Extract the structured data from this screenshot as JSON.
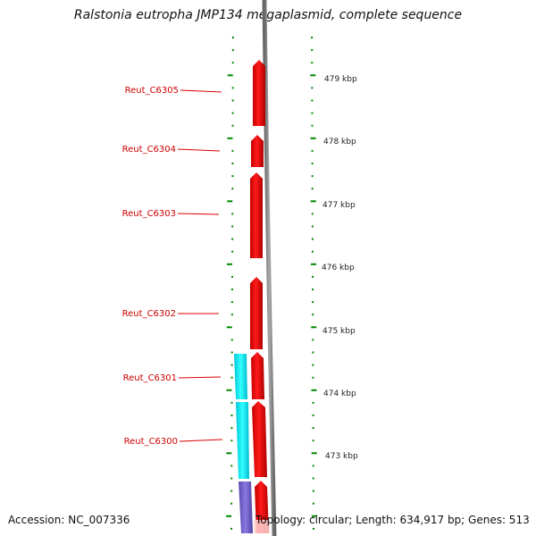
{
  "header": {
    "title": "Ralstonia eutropha JMP134 megaplasmid, complete sequence"
  },
  "footer": {
    "accession": "Accession: NC_007336",
    "topology": "Topology: circular; Length: 634,917 bp; Genes: 513"
  },
  "scale": {
    "ticks": [
      {
        "label": "479 kbp"
      },
      {
        "label": "478 kbp"
      },
      {
        "label": "477 kbp"
      },
      {
        "label": "476 kbp"
      },
      {
        "label": "475 kbp"
      },
      {
        "label": "474 kbp"
      },
      {
        "label": "473 kbp"
      }
    ]
  },
  "genes": [
    {
      "label": "Reut_C6305",
      "color": "#ff0000"
    },
    {
      "label": "Reut_C6304",
      "color": "#ff0000"
    },
    {
      "label": "Reut_C6303",
      "color": "#ff0000"
    },
    {
      "label": "Reut_C6302",
      "color": "#ff0000"
    },
    {
      "label": "Reut_C6301",
      "color": "#ff0000"
    },
    {
      "label": "Reut_C6300",
      "color": "#ff0000"
    }
  ],
  "colors": {
    "forward_gene": "#ff0000",
    "reverse_track_a": "#00e5ee",
    "reverse_track_b": "#7b68c8",
    "backbone": "#888888",
    "ruler": "#008800"
  }
}
